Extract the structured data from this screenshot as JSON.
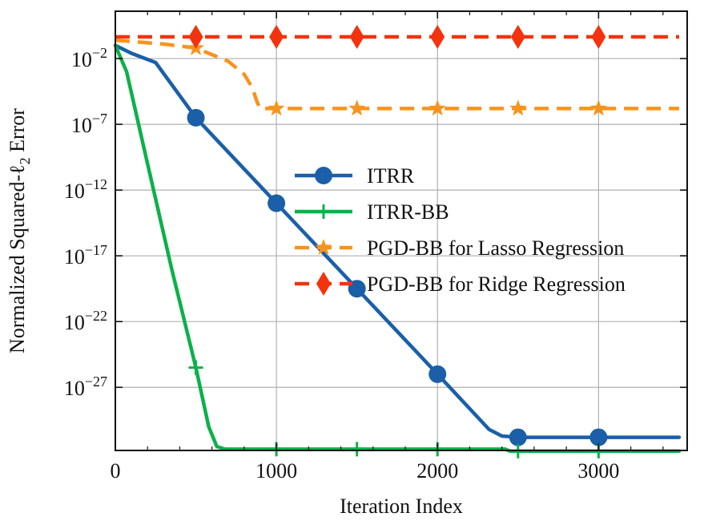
{
  "chart_data": {
    "type": "line",
    "title": "",
    "xlabel": "Iteration Index",
    "ylabel": "Normalized Squared-ℓ₂ Error",
    "xlim": [
      0,
      3550
    ],
    "ylim_log10": [
      -31.8,
      1.6
    ],
    "y_scale": "log",
    "grid": true,
    "legend_position": "center-right",
    "x_ticks": [
      0,
      1000,
      2000,
      3000
    ],
    "x_tick_labels": [
      "0",
      "1000",
      "2000",
      "3000"
    ],
    "y_ticks_log10": [
      -2,
      -7,
      -12,
      -17,
      -22,
      -27
    ],
    "y_tick_labels": [
      {
        "base": "10",
        "exp": "−2"
      },
      {
        "base": "10",
        "exp": "−7"
      },
      {
        "base": "10",
        "exp": "−12"
      },
      {
        "base": "10",
        "exp": "−17"
      },
      {
        "base": "10",
        "exp": "−22"
      },
      {
        "base": "10",
        "exp": "−27"
      }
    ],
    "series": [
      {
        "name": "ITRR",
        "color": "#1a5fa8",
        "linestyle": "solid",
        "marker": "circle",
        "x": [
          0,
          100,
          250,
          500,
          1000,
          1500,
          2000,
          2320,
          2400,
          2500,
          3000,
          3500
        ],
        "log10_y": [
          -1.0,
          -1.6,
          -2.3,
          -6.5,
          -13.0,
          -19.5,
          -26.0,
          -30.2,
          -30.7,
          -30.8,
          -30.8,
          -30.8
        ],
        "marker_x": [
          500,
          1000,
          1500,
          2000,
          2500,
          3000
        ],
        "marker_log10_y": [
          -6.5,
          -13.0,
          -19.5,
          -26.0,
          -30.8,
          -30.8
        ]
      },
      {
        "name": "ITRR-BB",
        "color": "#0db04b",
        "linestyle": "solid",
        "marker": "plus",
        "x": [
          0,
          70,
          200,
          350,
          500,
          580,
          630,
          680,
          1000,
          1500,
          2000,
          2420,
          2450,
          2500,
          3000,
          3500
        ],
        "log10_y": [
          -1.0,
          -3.0,
          -10.0,
          -18.0,
          -25.5,
          -30.0,
          -31.5,
          -31.7,
          -31.7,
          -31.7,
          -31.7,
          -31.7,
          -31.85,
          -31.85,
          -31.85,
          -31.85
        ],
        "marker_x": [
          500,
          1000,
          1500,
          2000,
          2500,
          3000
        ],
        "marker_log10_y": [
          -25.5,
          -31.7,
          -31.7,
          -31.7,
          -31.85,
          -31.85
        ]
      },
      {
        "name": "PGD-BB for Lasso Regression",
        "color": "#f7941d",
        "linestyle": "dashed",
        "marker": "star",
        "x": [
          0,
          300,
          500,
          700,
          800,
          850,
          880,
          900,
          1000,
          1500,
          2000,
          2500,
          3000,
          3500
        ],
        "log10_y": [
          -0.6,
          -0.9,
          -1.2,
          -2.2,
          -3.2,
          -4.2,
          -5.3,
          -5.8,
          -5.8,
          -5.8,
          -5.8,
          -5.8,
          -5.8,
          -5.8
        ],
        "marker_x": [
          500,
          1000,
          1500,
          2000,
          2500,
          3000
        ],
        "marker_log10_y": [
          -1.2,
          -5.8,
          -5.8,
          -5.8,
          -5.8,
          -5.8
        ]
      },
      {
        "name": "PGD-BB for Ridge Regression",
        "color": "#f2330d",
        "linestyle": "dashed",
        "marker": "diamond",
        "x": [
          0,
          3500
        ],
        "log10_y": [
          -0.35,
          -0.35
        ],
        "marker_x": [
          500,
          1000,
          1500,
          2000,
          2500,
          3000
        ],
        "marker_log10_y": [
          -0.35,
          -0.35,
          -0.35,
          -0.35,
          -0.35,
          -0.35
        ]
      }
    ]
  }
}
